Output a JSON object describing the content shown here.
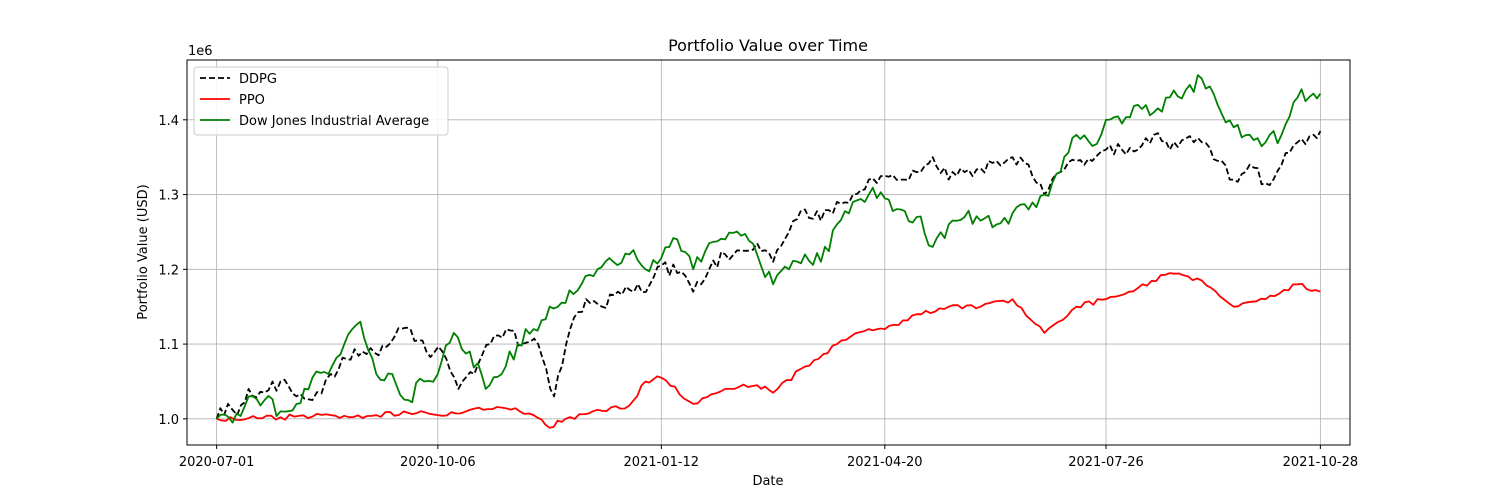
{
  "chart_data": {
    "type": "line",
    "title": "Portfolio Value over Time",
    "xlabel": "Date",
    "ylabel": "Portfolio Value (USD)",
    "y_multiplier_label": "1e6",
    "ylim": [
      0.965,
      1.48
    ],
    "xlim": [
      "2020-06-18",
      "2021-11-10"
    ],
    "x_ticks": [
      "2020-07-01",
      "2020-10-06",
      "2021-01-12",
      "2021-04-20",
      "2021-07-26",
      "2021-10-28"
    ],
    "y_ticks": [
      1.0,
      1.1,
      1.2,
      1.3,
      1.4
    ],
    "grid": true,
    "legend_position": "upper-left",
    "series": [
      {
        "name": "DDPG",
        "color": "#000000",
        "style": "dashed",
        "points": [
          [
            "2020-07-01",
            1.0
          ],
          [
            "2020-07-06",
            1.02
          ],
          [
            "2020-07-10",
            1.005
          ],
          [
            "2020-07-15",
            1.04
          ],
          [
            "2020-07-22",
            1.035
          ],
          [
            "2020-07-29",
            1.05
          ],
          [
            "2020-08-05",
            1.03
          ],
          [
            "2020-08-12",
            1.025
          ],
          [
            "2020-08-20",
            1.06
          ],
          [
            "2020-08-27",
            1.08
          ],
          [
            "2020-09-03",
            1.09
          ],
          [
            "2020-09-10",
            1.085
          ],
          [
            "2020-09-17",
            1.11
          ],
          [
            "2020-09-24",
            1.12
          ],
          [
            "2020-10-01",
            1.09
          ],
          [
            "2020-10-08",
            1.09
          ],
          [
            "2020-10-15",
            1.04
          ],
          [
            "2020-10-22",
            1.06
          ],
          [
            "2020-10-29",
            1.1
          ],
          [
            "2020-11-05",
            1.12
          ],
          [
            "2020-11-12",
            1.1
          ],
          [
            "2020-11-19",
            1.1
          ],
          [
            "2020-11-26",
            1.03
          ],
          [
            "2020-12-03",
            1.12
          ],
          [
            "2020-12-10",
            1.16
          ],
          [
            "2020-12-17",
            1.15
          ],
          [
            "2020-12-24",
            1.17
          ],
          [
            "2020-12-31",
            1.17
          ],
          [
            "2021-01-07",
            1.18
          ],
          [
            "2021-01-12",
            1.205
          ],
          [
            "2021-01-19",
            1.195
          ],
          [
            "2021-01-26",
            1.17
          ],
          [
            "2021-02-02",
            1.2
          ],
          [
            "2021-02-09",
            1.22
          ],
          [
            "2021-02-16",
            1.225
          ],
          [
            "2021-02-23",
            1.235
          ],
          [
            "2021-03-02",
            1.21
          ],
          [
            "2021-03-09",
            1.25
          ],
          [
            "2021-03-16",
            1.28
          ],
          [
            "2021-03-23",
            1.265
          ],
          [
            "2021-03-30",
            1.29
          ],
          [
            "2021-04-06",
            1.3
          ],
          [
            "2021-04-13",
            1.32
          ],
          [
            "2021-04-20",
            1.325
          ],
          [
            "2021-04-27",
            1.32
          ],
          [
            "2021-05-04",
            1.33
          ],
          [
            "2021-05-11",
            1.35
          ],
          [
            "2021-05-18",
            1.32
          ],
          [
            "2021-05-25",
            1.33
          ],
          [
            "2021-06-01",
            1.335
          ],
          [
            "2021-06-08",
            1.345
          ],
          [
            "2021-06-15",
            1.35
          ],
          [
            "2021-06-22",
            1.34
          ],
          [
            "2021-06-29",
            1.3
          ],
          [
            "2021-07-06",
            1.33
          ],
          [
            "2021-07-13",
            1.345
          ],
          [
            "2021-07-20",
            1.345
          ],
          [
            "2021-07-26",
            1.36
          ],
          [
            "2021-08-02",
            1.36
          ],
          [
            "2021-08-09",
            1.36
          ],
          [
            "2021-08-16",
            1.38
          ],
          [
            "2021-08-23",
            1.36
          ],
          [
            "2021-08-30",
            1.375
          ],
          [
            "2021-09-06",
            1.37
          ],
          [
            "2021-09-13",
            1.345
          ],
          [
            "2021-09-20",
            1.32
          ],
          [
            "2021-09-27",
            1.34
          ],
          [
            "2021-10-04",
            1.315
          ],
          [
            "2021-10-11",
            1.34
          ],
          [
            "2021-10-18",
            1.37
          ],
          [
            "2021-10-25",
            1.38
          ],
          [
            "2021-10-28",
            1.385
          ]
        ]
      },
      {
        "name": "PPO",
        "color": "#ff0000",
        "style": "solid",
        "points": [
          [
            "2020-07-01",
            1.0
          ],
          [
            "2020-07-15",
            1.001
          ],
          [
            "2020-07-29",
            1.002
          ],
          [
            "2020-08-12",
            1.003
          ],
          [
            "2020-08-26",
            1.004
          ],
          [
            "2020-09-09",
            1.005
          ],
          [
            "2020-09-23",
            1.008
          ],
          [
            "2020-10-06",
            1.005
          ],
          [
            "2020-10-20",
            1.012
          ],
          [
            "2020-11-03",
            1.015
          ],
          [
            "2020-11-17",
            1.005
          ],
          [
            "2020-11-24",
            0.988
          ],
          [
            "2020-12-01",
            1.0
          ],
          [
            "2020-12-15",
            1.012
          ],
          [
            "2020-12-29",
            1.018
          ],
          [
            "2021-01-05",
            1.05
          ],
          [
            "2021-01-12",
            1.055
          ],
          [
            "2021-01-26",
            1.02
          ],
          [
            "2021-02-09",
            1.04
          ],
          [
            "2021-02-23",
            1.045
          ],
          [
            "2021-03-02",
            1.035
          ],
          [
            "2021-03-16",
            1.07
          ],
          [
            "2021-03-30",
            1.1
          ],
          [
            "2021-04-13",
            1.12
          ],
          [
            "2021-04-20",
            1.12
          ],
          [
            "2021-05-04",
            1.14
          ],
          [
            "2021-05-18",
            1.15
          ],
          [
            "2021-06-01",
            1.15
          ],
          [
            "2021-06-15",
            1.16
          ],
          [
            "2021-06-29",
            1.115
          ],
          [
            "2021-07-13",
            1.15
          ],
          [
            "2021-07-26",
            1.16
          ],
          [
            "2021-08-09",
            1.175
          ],
          [
            "2021-08-23",
            1.195
          ],
          [
            "2021-09-06",
            1.185
          ],
          [
            "2021-09-20",
            1.15
          ],
          [
            "2021-10-04",
            1.16
          ],
          [
            "2021-10-18",
            1.18
          ],
          [
            "2021-10-28",
            1.17
          ]
        ]
      },
      {
        "name": "Dow Jones Industrial Average",
        "color": "#008000",
        "style": "solid",
        "points": [
          [
            "2020-07-01",
            1.0
          ],
          [
            "2020-07-08",
            0.995
          ],
          [
            "2020-07-15",
            1.03
          ],
          [
            "2020-07-22",
            1.025
          ],
          [
            "2020-07-29",
            1.01
          ],
          [
            "2020-08-05",
            1.02
          ],
          [
            "2020-08-12",
            1.055
          ],
          [
            "2020-08-19",
            1.06
          ],
          [
            "2020-08-26",
            1.1
          ],
          [
            "2020-09-02",
            1.13
          ],
          [
            "2020-09-09",
            1.06
          ],
          [
            "2020-09-16",
            1.06
          ],
          [
            "2020-09-23",
            1.025
          ],
          [
            "2020-09-30",
            1.05
          ],
          [
            "2020-10-06",
            1.06
          ],
          [
            "2020-10-13",
            1.115
          ],
          [
            "2020-10-20",
            1.09
          ],
          [
            "2020-10-27",
            1.04
          ],
          [
            "2020-11-03",
            1.06
          ],
          [
            "2020-11-10",
            1.1
          ],
          [
            "2020-11-17",
            1.12
          ],
          [
            "2020-11-24",
            1.15
          ],
          [
            "2020-12-01",
            1.155
          ],
          [
            "2020-12-08",
            1.18
          ],
          [
            "2020-12-15",
            1.2
          ],
          [
            "2020-12-22",
            1.21
          ],
          [
            "2020-12-29",
            1.22
          ],
          [
            "2021-01-05",
            1.2
          ],
          [
            "2021-01-12",
            1.215
          ],
          [
            "2021-01-19",
            1.24
          ],
          [
            "2021-01-26",
            1.2
          ],
          [
            "2021-02-02",
            1.235
          ],
          [
            "2021-02-09",
            1.24
          ],
          [
            "2021-02-16",
            1.245
          ],
          [
            "2021-02-23",
            1.22
          ],
          [
            "2021-03-02",
            1.18
          ],
          [
            "2021-03-09",
            1.2
          ],
          [
            "2021-03-16",
            1.22
          ],
          [
            "2021-03-23",
            1.21
          ],
          [
            "2021-03-30",
            1.26
          ],
          [
            "2021-04-06",
            1.29
          ],
          [
            "2021-04-13",
            1.3
          ],
          [
            "2021-04-20",
            1.295
          ],
          [
            "2021-04-27",
            1.28
          ],
          [
            "2021-05-04",
            1.27
          ],
          [
            "2021-05-11",
            1.23
          ],
          [
            "2021-05-18",
            1.26
          ],
          [
            "2021-05-25",
            1.27
          ],
          [
            "2021-06-01",
            1.265
          ],
          [
            "2021-06-08",
            1.26
          ],
          [
            "2021-06-15",
            1.275
          ],
          [
            "2021-06-22",
            1.28
          ],
          [
            "2021-06-29",
            1.3
          ],
          [
            "2021-07-06",
            1.33
          ],
          [
            "2021-07-13",
            1.38
          ],
          [
            "2021-07-20",
            1.365
          ],
          [
            "2021-07-26",
            1.4
          ],
          [
            "2021-08-02",
            1.395
          ],
          [
            "2021-08-09",
            1.42
          ],
          [
            "2021-08-16",
            1.41
          ],
          [
            "2021-08-23",
            1.43
          ],
          [
            "2021-08-30",
            1.44
          ],
          [
            "2021-09-06",
            1.455
          ],
          [
            "2021-09-13",
            1.42
          ],
          [
            "2021-09-20",
            1.39
          ],
          [
            "2021-09-27",
            1.38
          ],
          [
            "2021-10-04",
            1.37
          ],
          [
            "2021-10-11",
            1.38
          ],
          [
            "2021-10-18",
            1.43
          ],
          [
            "2021-10-25",
            1.435
          ],
          [
            "2021-10-28",
            1.435
          ]
        ]
      }
    ]
  }
}
